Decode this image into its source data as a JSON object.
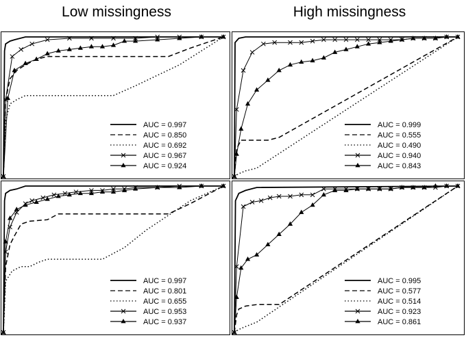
{
  "columns": [
    "Low missingness",
    "High missingness"
  ],
  "chart_data": [
    {
      "type": "line",
      "panel": "top-left",
      "xlim": [
        0,
        1
      ],
      "ylim": [
        0,
        1
      ],
      "legend_position": "bottom-right",
      "series": [
        {
          "name": "AUC = 0.997",
          "style": "solid",
          "marker": "none",
          "x": [
            0,
            0.005,
            0.01,
            0.03,
            0.05,
            0.1,
            1.0
          ],
          "y": [
            0,
            0.9,
            0.95,
            0.97,
            0.98,
            1.0,
            1.0
          ]
        },
        {
          "name": "AUC = 0.850",
          "style": "dashed",
          "marker": "none",
          "x": [
            0,
            0.01,
            0.03,
            0.06,
            0.1,
            0.15,
            0.2,
            0.75,
            0.85,
            1.0
          ],
          "y": [
            0,
            0.55,
            0.7,
            0.76,
            0.8,
            0.84,
            0.86,
            0.86,
            0.92,
            1.0
          ]
        },
        {
          "name": "AUC = 0.692",
          "style": "dotted",
          "marker": "none",
          "x": [
            0,
            0.01,
            0.03,
            0.06,
            0.1,
            0.5,
            0.6,
            0.8,
            1.0
          ],
          "y": [
            0,
            0.4,
            0.52,
            0.55,
            0.58,
            0.58,
            0.65,
            0.8,
            1.0
          ]
        },
        {
          "name": "AUC = 0.967",
          "style": "solid",
          "marker": "x",
          "x": [
            0,
            0.01,
            0.04,
            0.08,
            0.13,
            0.2,
            0.3,
            0.4,
            0.5,
            0.6,
            0.7,
            0.8,
            0.9,
            1.0
          ],
          "y": [
            0,
            0.55,
            0.86,
            0.91,
            0.95,
            0.98,
            0.99,
            0.99,
            0.99,
            0.99,
            1.0,
            1.0,
            1.0,
            1.0
          ]
        },
        {
          "name": "AUC = 0.924",
          "style": "solid",
          "marker": "triangle",
          "x": [
            0,
            0.02,
            0.05,
            0.1,
            0.15,
            0.2,
            0.25,
            0.3,
            0.35,
            0.4,
            0.45,
            0.5,
            0.55,
            0.6,
            0.7,
            0.8,
            0.9,
            1.0
          ],
          "y": [
            0,
            0.56,
            0.76,
            0.81,
            0.84,
            0.88,
            0.9,
            0.91,
            0.92,
            0.93,
            0.93,
            0.94,
            0.97,
            0.97,
            0.98,
            0.99,
            1.0,
            1.0
          ]
        }
      ]
    },
    {
      "type": "line",
      "panel": "top-right",
      "xlim": [
        0,
        1
      ],
      "ylim": [
        0,
        1
      ],
      "legend_position": "bottom-right",
      "series": [
        {
          "name": "AUC = 0.999",
          "style": "solid",
          "marker": "none",
          "x": [
            0,
            0.003,
            0.02,
            0.05,
            1.0
          ],
          "y": [
            0,
            0.96,
            0.99,
            1.0,
            1.0
          ]
        },
        {
          "name": "AUC = 0.555",
          "style": "dashed",
          "marker": "none",
          "x": [
            0,
            0.01,
            0.03,
            0.15,
            0.2,
            1.0
          ],
          "y": [
            0,
            0.2,
            0.26,
            0.26,
            0.28,
            1.0
          ]
        },
        {
          "name": "AUC = 0.490",
          "style": "dotted",
          "marker": "none",
          "x": [
            0,
            0.02,
            0.05,
            0.1,
            1.0
          ],
          "y": [
            0,
            0.02,
            0.04,
            0.06,
            1.0
          ]
        },
        {
          "name": "AUC = 0.940",
          "style": "solid",
          "marker": "x",
          "x": [
            0,
            0.01,
            0.04,
            0.08,
            0.13,
            0.18,
            0.25,
            0.3,
            0.35,
            0.4,
            0.45,
            0.5,
            0.55,
            0.6,
            0.65,
            0.7,
            0.75,
            0.8,
            0.85,
            0.9,
            0.95,
            1.0
          ],
          "y": [
            0,
            0.48,
            0.76,
            0.89,
            0.95,
            0.96,
            0.96,
            0.96,
            0.97,
            0.98,
            0.98,
            0.98,
            0.98,
            0.98,
            0.98,
            0.98,
            0.98,
            0.99,
            0.99,
            0.99,
            1.0,
            1.0
          ]
        },
        {
          "name": "AUC = 0.843",
          "style": "solid",
          "marker": "triangle",
          "x": [
            0,
            0.01,
            0.03,
            0.06,
            0.1,
            0.15,
            0.2,
            0.25,
            0.3,
            0.35,
            0.4,
            0.45,
            0.5,
            0.55,
            0.6,
            0.65,
            0.7,
            0.75,
            0.8,
            0.85,
            0.9,
            0.95,
            1.0
          ],
          "y": [
            0,
            0.16,
            0.34,
            0.52,
            0.62,
            0.69,
            0.76,
            0.8,
            0.82,
            0.83,
            0.85,
            0.89,
            0.91,
            0.93,
            0.95,
            0.96,
            0.97,
            0.98,
            0.99,
            0.99,
            0.99,
            1.0,
            1.0
          ]
        }
      ]
    },
    {
      "type": "line",
      "panel": "bottom-left",
      "xlim": [
        0,
        1
      ],
      "ylim": [
        0,
        1
      ],
      "legend_position": "bottom-right",
      "series": [
        {
          "name": "AUC = 0.997",
          "style": "solid",
          "marker": "none",
          "x": [
            0,
            0.005,
            0.01,
            0.03,
            0.06,
            0.1,
            1.0
          ],
          "y": [
            0,
            0.9,
            0.95,
            0.97,
            0.98,
            1.0,
            1.0
          ]
        },
        {
          "name": "AUC = 0.801",
          "style": "dashed",
          "marker": "none",
          "x": [
            0,
            0.01,
            0.03,
            0.05,
            0.08,
            0.12,
            0.2,
            0.25,
            0.75,
            0.85,
            0.95,
            1.0
          ],
          "y": [
            0,
            0.45,
            0.6,
            0.66,
            0.74,
            0.76,
            0.77,
            0.81,
            0.81,
            0.88,
            0.96,
            1.0
          ]
        },
        {
          "name": "AUC = 0.655",
          "style": "dotted",
          "marker": "none",
          "x": [
            0,
            0.01,
            0.04,
            0.08,
            0.12,
            0.16,
            0.2,
            0.45,
            0.55,
            0.65,
            0.75,
            0.85,
            1.0
          ],
          "y": [
            0,
            0.35,
            0.42,
            0.45,
            0.45,
            0.48,
            0.5,
            0.5,
            0.58,
            0.7,
            0.8,
            0.9,
            1.0
          ]
        },
        {
          "name": "AUC = 0.953",
          "style": "solid",
          "marker": "x",
          "x": [
            0,
            0.01,
            0.03,
            0.06,
            0.1,
            0.13,
            0.18,
            0.23,
            0.28,
            0.33,
            0.4,
            0.45,
            0.5,
            0.55,
            0.6,
            0.7,
            0.8,
            0.9,
            1.0
          ],
          "y": [
            0,
            0.55,
            0.72,
            0.82,
            0.88,
            0.9,
            0.92,
            0.94,
            0.95,
            0.96,
            0.97,
            0.97,
            0.98,
            0.98,
            0.99,
            0.99,
            1.0,
            1.0,
            1.0
          ]
        },
        {
          "name": "AUC = 0.937",
          "style": "solid",
          "marker": "triangle",
          "x": [
            0,
            0.01,
            0.03,
            0.06,
            0.1,
            0.15,
            0.2,
            0.25,
            0.3,
            0.35,
            0.4,
            0.45,
            0.5,
            0.55,
            0.6,
            0.7,
            0.8,
            0.9,
            1.0
          ],
          "y": [
            0,
            0.62,
            0.78,
            0.84,
            0.87,
            0.89,
            0.91,
            0.93,
            0.94,
            0.95,
            0.95,
            0.96,
            0.96,
            0.97,
            0.98,
            0.99,
            0.99,
            1.0,
            1.0
          ]
        }
      ]
    },
    {
      "type": "line",
      "panel": "bottom-right",
      "xlim": [
        0,
        1
      ],
      "ylim": [
        0,
        1
      ],
      "legend_position": "bottom-right",
      "series": [
        {
          "name": "AUC = 0.995",
          "style": "solid",
          "marker": "none",
          "x": [
            0,
            0.005,
            0.02,
            0.05,
            0.1,
            1.0
          ],
          "y": [
            0,
            0.9,
            0.95,
            0.97,
            0.99,
            1.0
          ]
        },
        {
          "name": "AUC = 0.577",
          "style": "dashed",
          "marker": "none",
          "x": [
            0,
            0.01,
            0.02,
            0.05,
            0.1,
            0.2,
            1.0
          ],
          "y": [
            0,
            0.12,
            0.16,
            0.18,
            0.19,
            0.19,
            1.0
          ]
        },
        {
          "name": "AUC = 0.514",
          "style": "dotted",
          "marker": "none",
          "x": [
            0,
            0.02,
            0.05,
            0.1,
            1.0
          ],
          "y": [
            0,
            0.02,
            0.04,
            0.07,
            1.0
          ]
        },
        {
          "name": "AUC = 0.923",
          "style": "solid",
          "marker": "x",
          "x": [
            0,
            0.01,
            0.04,
            0.08,
            0.12,
            0.16,
            0.2,
            0.25,
            0.3,
            0.35,
            0.4,
            0.45,
            0.5,
            0.55,
            0.6,
            0.65,
            0.7,
            0.75,
            0.8,
            0.85,
            0.9,
            0.95,
            1.0
          ],
          "y": [
            0,
            0.45,
            0.86,
            0.89,
            0.9,
            0.92,
            0.93,
            0.93,
            0.94,
            0.94,
            0.98,
            0.98,
            0.98,
            0.98,
            0.98,
            0.98,
            0.98,
            0.99,
            0.99,
            0.99,
            0.99,
            1.0,
            1.0
          ]
        },
        {
          "name": "AUC = 0.861",
          "style": "solid",
          "marker": "triangle",
          "x": [
            0,
            0.01,
            0.03,
            0.06,
            0.1,
            0.15,
            0.2,
            0.25,
            0.3,
            0.35,
            0.4,
            0.45,
            0.5,
            0.55,
            0.6,
            0.65,
            0.7,
            0.75,
            0.8,
            0.85,
            0.9,
            0.95,
            1.0
          ],
          "y": [
            0,
            0.24,
            0.44,
            0.5,
            0.53,
            0.6,
            0.67,
            0.74,
            0.82,
            0.87,
            0.94,
            0.97,
            0.97,
            0.98,
            0.98,
            0.98,
            0.98,
            0.99,
            0.99,
            0.99,
            1.0,
            1.0,
            1.0
          ]
        }
      ]
    }
  ]
}
